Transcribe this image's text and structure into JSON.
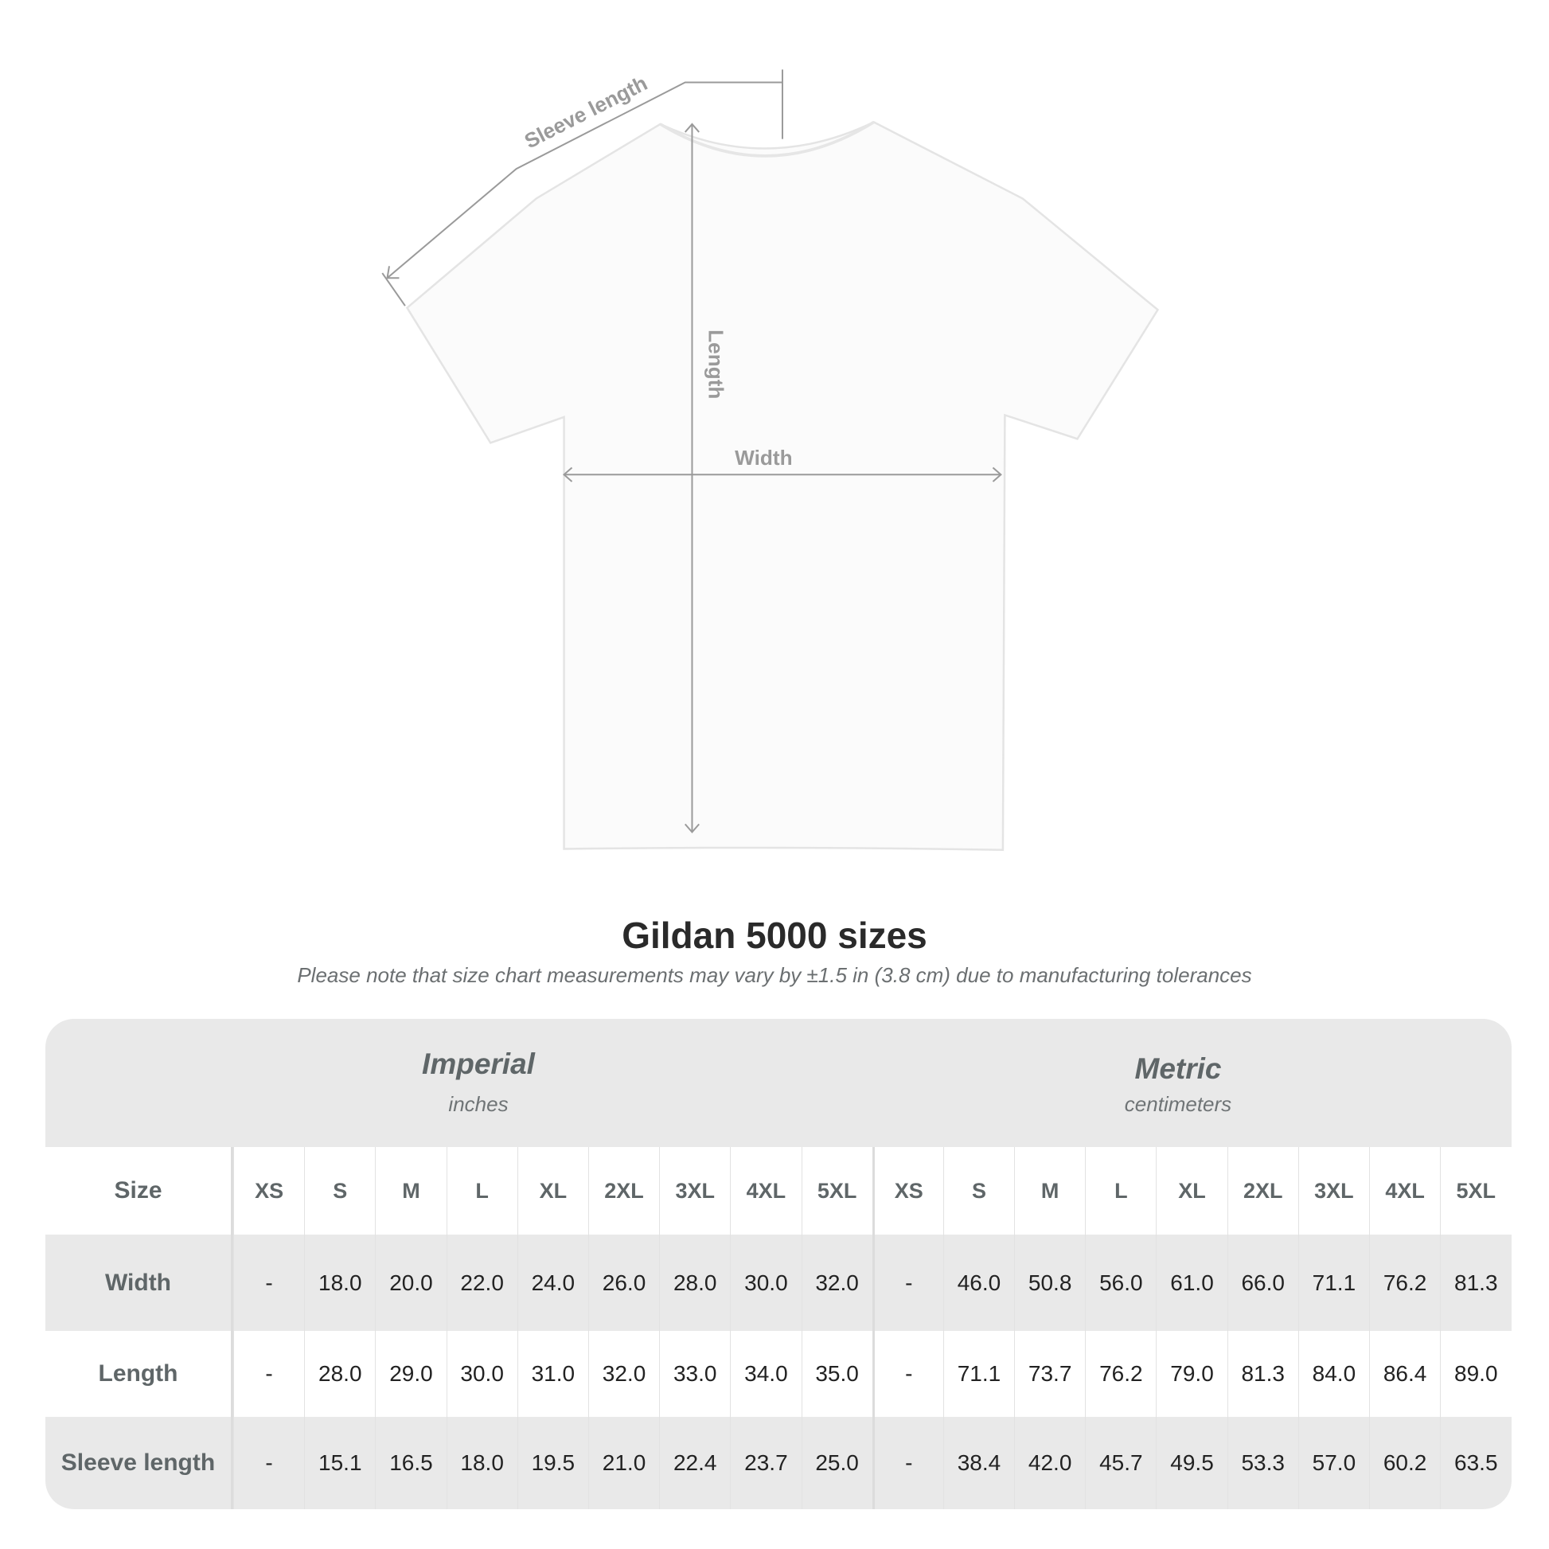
{
  "diagram": {
    "labels": {
      "sleeve": "Sleeve length",
      "length": "Length",
      "width": "Width"
    }
  },
  "title": "Gildan 5000 sizes",
  "note": "Please note that size chart measurements may vary by ±1.5 in (3.8 cm) due to manufacturing tolerances",
  "table": {
    "imperial": {
      "name": "Imperial",
      "unit": "inches"
    },
    "metric": {
      "name": "Metric",
      "unit": "centimeters"
    },
    "size_label": "Size",
    "sizes": [
      "XS",
      "S",
      "M",
      "L",
      "XL",
      "2XL",
      "3XL",
      "4XL",
      "5XL"
    ],
    "rows": [
      {
        "label": "Width",
        "imperial": [
          "-",
          "18.0",
          "20.0",
          "22.0",
          "24.0",
          "26.0",
          "28.0",
          "30.0",
          "32.0"
        ],
        "metric": [
          "-",
          "46.0",
          "50.8",
          "56.0",
          "61.0",
          "66.0",
          "71.1",
          "76.2",
          "81.3"
        ]
      },
      {
        "label": "Length",
        "imperial": [
          "-",
          "28.0",
          "29.0",
          "30.0",
          "31.0",
          "32.0",
          "33.0",
          "34.0",
          "35.0"
        ],
        "metric": [
          "-",
          "71.1",
          "73.7",
          "76.2",
          "79.0",
          "81.3",
          "84.0",
          "86.4",
          "89.0"
        ]
      },
      {
        "label": "Sleeve length",
        "imperial": [
          "-",
          "15.1",
          "16.5",
          "18.0",
          "19.5",
          "21.0",
          "22.4",
          "23.7",
          "25.0"
        ],
        "metric": [
          "-",
          "38.4",
          "42.0",
          "45.7",
          "49.5",
          "53.3",
          "57.0",
          "60.2",
          "63.5"
        ]
      }
    ]
  },
  "colors": {
    "band": "#e9e9e9",
    "label": "#5f6668",
    "value": "#222222",
    "measure_line": "#9a9a9a"
  }
}
